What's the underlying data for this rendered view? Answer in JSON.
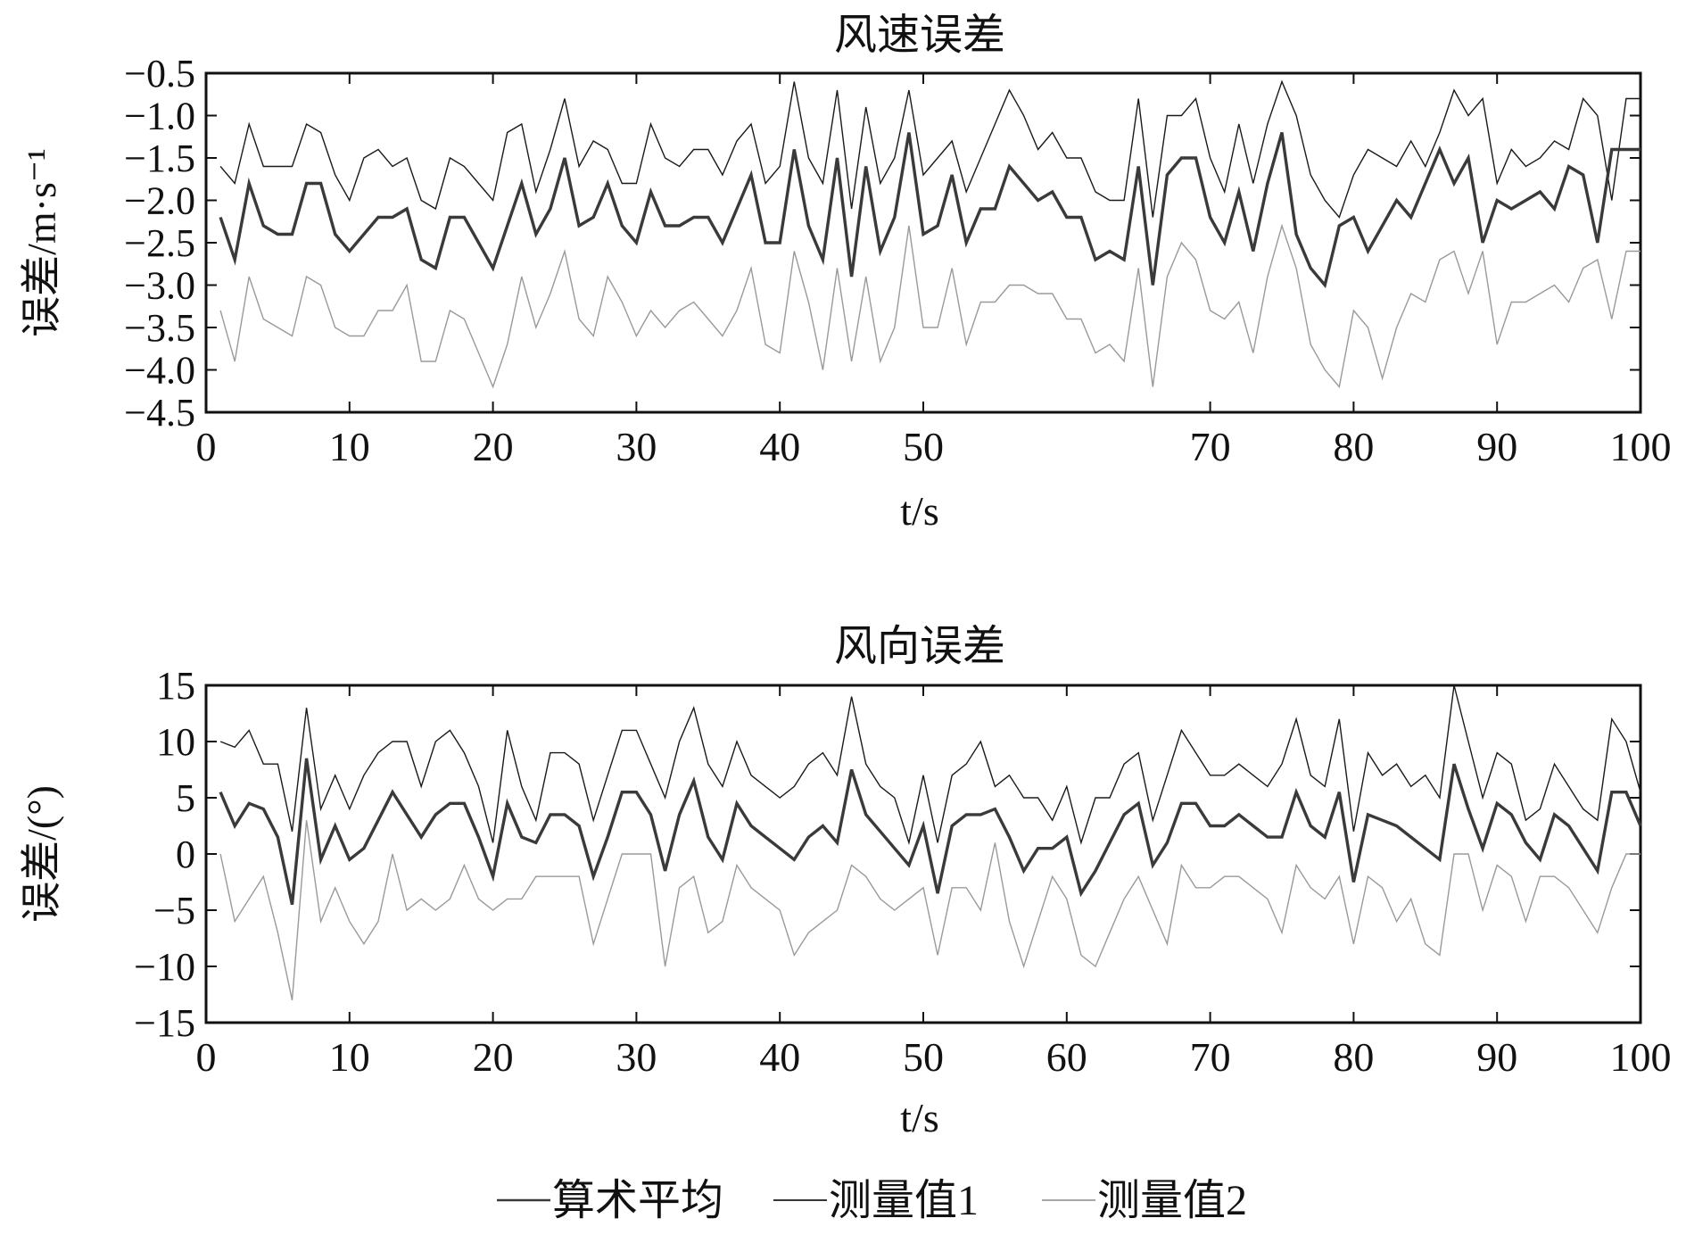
{
  "chart_data": [
    {
      "type": "line",
      "title": "风速误差",
      "xlabel": "t/s",
      "ylabel": "误差/m·s⁻¹",
      "xlim": [
        0,
        100
      ],
      "ylim": [
        -4.5,
        -0.5
      ],
      "xticks": [
        0,
        10,
        20,
        30,
        40,
        50,
        70,
        80,
        90,
        100
      ],
      "yticks": [
        "-0.5",
        "-1.0",
        "-1.5",
        "-2.0",
        "-2.5",
        "-3.0",
        "-3.5",
        "-4.0",
        "-4.5"
      ],
      "grid": false,
      "x": [
        1,
        2,
        3,
        4,
        5,
        6,
        7,
        8,
        9,
        10,
        11,
        12,
        13,
        14,
        15,
        16,
        17,
        18,
        19,
        20,
        21,
        22,
        23,
        24,
        25,
        26,
        27,
        28,
        29,
        30,
        31,
        32,
        33,
        34,
        35,
        36,
        37,
        38,
        39,
        40,
        41,
        42,
        43,
        44,
        45,
        46,
        47,
        48,
        49,
        50,
        51,
        52,
        53,
        54,
        55,
        56,
        57,
        58,
        59,
        60,
        61,
        62,
        63,
        64,
        65,
        66,
        67,
        68,
        69,
        70,
        71,
        72,
        73,
        74,
        75,
        76,
        77,
        78,
        79,
        80,
        81,
        82,
        83,
        84,
        85,
        86,
        87,
        88,
        89,
        90,
        91,
        92,
        93,
        94,
        95,
        96,
        97,
        98,
        99,
        100
      ],
      "series": [
        {
          "name": "算术平均",
          "values": [
            -2.2,
            -2.7,
            -1.8,
            -2.3,
            -2.4,
            -2.4,
            -1.8,
            -1.8,
            -2.4,
            -2.6,
            -2.4,
            -2.2,
            -2.2,
            -2.1,
            -2.7,
            -2.8,
            -2.2,
            -2.2,
            -2.5,
            -2.8,
            -2.3,
            -1.8,
            -2.4,
            -2.1,
            -1.5,
            -2.3,
            -2.2,
            -1.8,
            -2.3,
            -2.5,
            -1.9,
            -2.3,
            -2.3,
            -2.2,
            -2.2,
            -2.5,
            -2.1,
            -1.7,
            -2.5,
            -2.5,
            -1.4,
            -2.3,
            -2.7,
            -1.5,
            -2.9,
            -1.6,
            -2.6,
            -2.2,
            -1.2,
            -2.4,
            -2.3,
            -1.7,
            -2.5,
            -2.1,
            -2.1,
            -1.6,
            -1.8,
            -2.0,
            -1.9,
            -2.2,
            -2.2,
            -2.7,
            -2.6,
            -2.7,
            -1.6,
            -3.0,
            -1.7,
            -1.5,
            -1.5,
            -2.2,
            -2.5,
            -1.9,
            -2.6,
            -1.8,
            -1.2,
            -2.4,
            -2.8,
            -3.0,
            -2.3,
            -2.2,
            -2.6,
            -2.3,
            -2.0,
            -2.2,
            -1.8,
            -1.4,
            -1.8,
            -1.5,
            -2.5,
            -2.0,
            -2.1,
            -2.0,
            -1.9,
            -2.1,
            -1.6,
            -1.7,
            -2.5,
            -1.4,
            -1.4,
            -1.4
          ]
        },
        {
          "name": "测量值1",
          "values": [
            -1.6,
            -1.8,
            -1.1,
            -1.6,
            -1.6,
            -1.6,
            -1.1,
            -1.2,
            -1.7,
            -2.0,
            -1.5,
            -1.4,
            -1.6,
            -1.5,
            -2.0,
            -2.1,
            -1.5,
            -1.6,
            -1.8,
            -2.0,
            -1.2,
            -1.1,
            -1.9,
            -1.4,
            -0.8,
            -1.6,
            -1.3,
            -1.4,
            -1.8,
            -1.8,
            -1.1,
            -1.5,
            -1.6,
            -1.4,
            -1.4,
            -1.7,
            -1.3,
            -1.1,
            -1.8,
            -1.6,
            -0.6,
            -1.5,
            -1.8,
            -0.7,
            -2.1,
            -0.9,
            -1.8,
            -1.5,
            -0.7,
            -1.7,
            -1.5,
            -1.3,
            -1.9,
            -1.5,
            -1.1,
            -0.7,
            -1.0,
            -1.4,
            -1.2,
            -1.5,
            -1.5,
            -1.9,
            -2.0,
            -2.0,
            -0.8,
            -2.2,
            -1.0,
            -1.0,
            -0.8,
            -1.5,
            -1.9,
            -1.1,
            -1.8,
            -1.1,
            -0.6,
            -1.0,
            -1.7,
            -2.0,
            -2.2,
            -1.7,
            -1.4,
            -1.5,
            -1.6,
            -1.3,
            -1.6,
            -1.2,
            -0.7,
            -1.0,
            -0.8,
            -1.8,
            -1.4,
            -1.6,
            -1.5,
            -1.3,
            -1.4,
            -0.8,
            -1.0,
            -2.0,
            -0.8,
            -0.8
          ]
        },
        {
          "name": "测量值2",
          "values": [
            -3.3,
            -3.9,
            -2.9,
            -3.4,
            -3.5,
            -3.6,
            -2.9,
            -3.0,
            -3.5,
            -3.6,
            -3.6,
            -3.3,
            -3.3,
            -3.0,
            -3.9,
            -3.9,
            -3.3,
            -3.4,
            -3.8,
            -4.2,
            -3.7,
            -2.9,
            -3.5,
            -3.1,
            -2.6,
            -3.4,
            -3.6,
            -2.9,
            -3.2,
            -3.6,
            -3.3,
            -3.5,
            -3.3,
            -3.2,
            -3.4,
            -3.6,
            -3.3,
            -2.8,
            -3.7,
            -3.8,
            -2.6,
            -3.2,
            -4.0,
            -2.8,
            -3.9,
            -2.9,
            -3.9,
            -3.5,
            -2.3,
            -3.5,
            -3.5,
            -2.8,
            -3.7,
            -3.2,
            -3.2,
            -3.0,
            -3.0,
            -3.1,
            -3.1,
            -3.4,
            -3.4,
            -3.8,
            -3.7,
            -3.9,
            -2.8,
            -4.2,
            -2.9,
            -2.5,
            -2.7,
            -3.3,
            -3.4,
            -3.2,
            -3.8,
            -2.9,
            -2.3,
            -2.8,
            -3.7,
            -4.0,
            -4.2,
            -3.3,
            -3.5,
            -4.1,
            -3.5,
            -3.1,
            -3.2,
            -2.7,
            -2.6,
            -3.1,
            -2.6,
            -3.7,
            -3.2,
            -3.2,
            -3.1,
            -3.0,
            -3.2,
            -2.8,
            -2.7,
            -3.4,
            -2.6,
            -2.6
          ]
        }
      ]
    },
    {
      "type": "line",
      "title": "风向误差",
      "xlabel": "t/s",
      "ylabel": "误差/(°)",
      "xlim": [
        0,
        100
      ],
      "ylim": [
        -15,
        15
      ],
      "xticks": [
        0,
        10,
        20,
        30,
        40,
        50,
        60,
        70,
        80,
        90,
        100
      ],
      "yticks": [
        "15",
        "10",
        "5",
        "0",
        "-5",
        "-10",
        "-15"
      ],
      "grid": false,
      "x": [
        1,
        2,
        3,
        4,
        5,
        6,
        7,
        8,
        9,
        10,
        11,
        12,
        13,
        14,
        15,
        16,
        17,
        18,
        19,
        20,
        21,
        22,
        23,
        24,
        25,
        26,
        27,
        28,
        29,
        30,
        31,
        32,
        33,
        34,
        35,
        36,
        37,
        38,
        39,
        40,
        41,
        42,
        43,
        44,
        45,
        46,
        47,
        48,
        49,
        50,
        51,
        52,
        53,
        54,
        55,
        56,
        57,
        58,
        59,
        60,
        61,
        62,
        63,
        64,
        65,
        66,
        67,
        68,
        69,
        70,
        71,
        72,
        73,
        74,
        75,
        76,
        77,
        78,
        79,
        80,
        81,
        82,
        83,
        84,
        85,
        86,
        87,
        88,
        89,
        90,
        91,
        92,
        93,
        94,
        95,
        96,
        97,
        98,
        99,
        100
      ],
      "series": [
        {
          "name": "算术平均",
          "values": [
            5.5,
            2.5,
            4.5,
            4,
            1.5,
            -4.5,
            8.5,
            -0.5,
            2.5,
            -0.5,
            0.5,
            3,
            5.5,
            3.5,
            1.5,
            3.5,
            4.5,
            4.5,
            1.5,
            -2,
            4.5,
            1.5,
            1,
            3.5,
            3.5,
            2.5,
            -2,
            1.5,
            5.5,
            5.5,
            3.5,
            -1.5,
            3.5,
            6.5,
            1.5,
            -0.5,
            4.5,
            2.5,
            1.5,
            0.5,
            -0.5,
            1.5,
            2.5,
            1,
            7.5,
            3.5,
            2,
            0.5,
            -1,
            2.5,
            -3.5,
            2.5,
            3.5,
            3.5,
            4,
            1.5,
            -1.5,
            0.5,
            0.5,
            1.5,
            -3.5,
            -1.5,
            1,
            3.5,
            4.5,
            -1,
            1,
            4.5,
            4.5,
            2.5,
            2.5,
            3.5,
            2.5,
            1.5,
            1.5,
            5.5,
            2.5,
            1.5,
            5.5,
            -2.5,
            3.5,
            3,
            2.5,
            1.5,
            0.5,
            -0.5,
            8,
            4,
            0.5,
            4.5,
            3.5,
            1,
            -0.5,
            3.5,
            2.5,
            0.5,
            -1.5,
            5.5,
            5.5,
            2.5
          ]
        },
        {
          "name": "测量值1",
          "values": [
            10,
            9.5,
            11,
            8,
            8,
            2,
            13,
            4,
            7,
            4,
            7,
            9,
            10,
            10,
            6,
            10,
            11,
            9,
            6,
            1,
            11,
            6,
            3,
            9,
            9,
            8,
            3,
            7,
            11,
            11,
            8,
            5,
            10,
            13,
            8,
            6,
            10,
            7,
            6,
            5,
            6,
            8,
            9,
            7,
            14,
            8,
            6,
            5,
            1,
            7,
            1,
            7,
            8,
            10,
            6,
            7,
            5,
            5,
            3,
            6,
            1,
            5,
            5,
            8,
            9,
            3,
            7,
            11,
            9,
            7,
            7,
            8,
            7,
            6,
            8,
            12,
            7,
            6,
            12,
            2,
            9,
            7,
            8,
            6,
            7,
            5,
            15,
            10,
            5,
            9,
            8,
            3,
            4,
            8,
            6,
            4,
            3,
            12,
            10,
            5.5
          ]
        },
        {
          "name": "测量值2",
          "values": [
            0,
            -6,
            -4,
            -2,
            -7,
            -13,
            3,
            -6,
            -3,
            -6,
            -8,
            -6,
            0,
            -5,
            -4,
            -5,
            -4,
            -1,
            -4,
            -5,
            -4,
            -4,
            -2,
            -2,
            -2,
            -2,
            -8,
            -4,
            0,
            0,
            0,
            -10,
            -3,
            -2,
            -7,
            -6,
            -1,
            -3,
            -4,
            -5,
            -9,
            -7,
            -6,
            -5,
            -1,
            -2,
            -4,
            -5,
            -4,
            -3,
            -9,
            -3,
            -3,
            -5,
            1,
            -6,
            -10,
            -6,
            -2,
            -4,
            -9,
            -10,
            -7,
            -4,
            -2,
            -5,
            -8,
            -1,
            -3,
            -3,
            -2,
            -2,
            -3,
            -4,
            -7,
            -1,
            -3,
            -4,
            -2,
            -8,
            -2,
            -3,
            -6,
            -4,
            -8,
            -9,
            0,
            0,
            -5,
            -1,
            -2,
            -6,
            -2,
            -2,
            -3,
            -5,
            -7,
            -3,
            0,
            0
          ]
        }
      ]
    }
  ],
  "legend": {
    "placement": "bottom-center",
    "items": [
      {
        "label": "算术平均",
        "color": "#3a3a3a"
      },
      {
        "label": "测量值1",
        "color": "#1a1a1a"
      },
      {
        "label": "测量值2",
        "color": "#9a9a9a"
      }
    ]
  },
  "series_colors": [
    "#3a3a3a",
    "#1a1a1a",
    "#9a9a9a"
  ]
}
